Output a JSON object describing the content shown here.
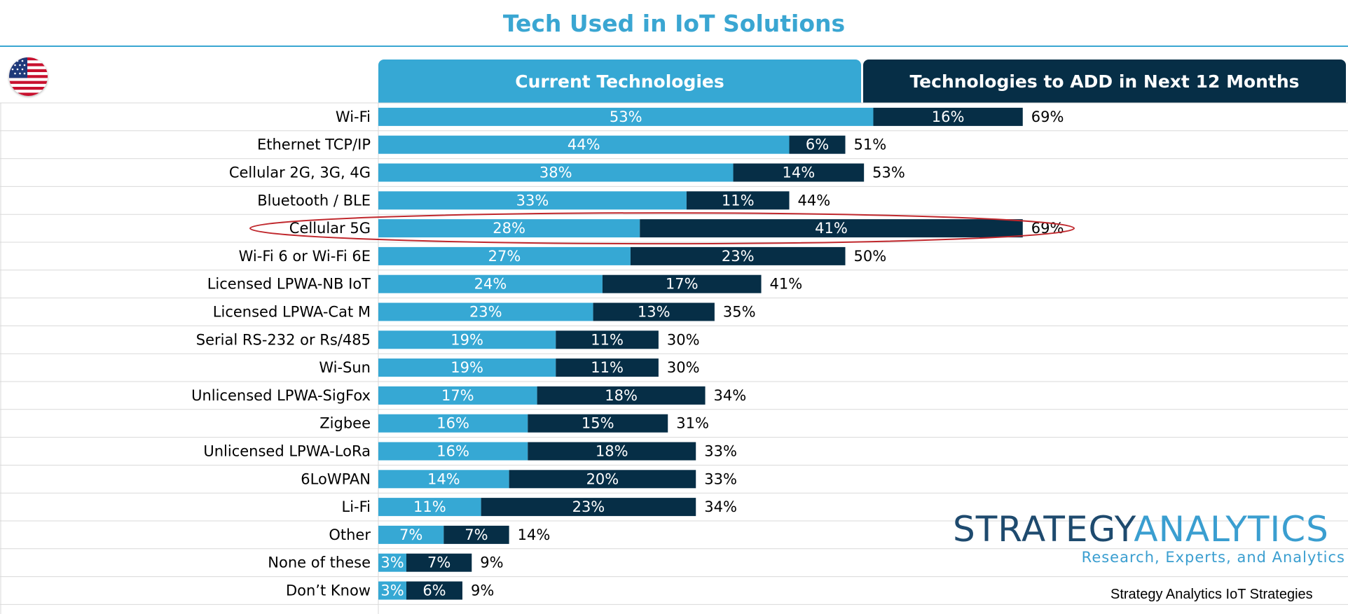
{
  "header": {
    "title": "Tech Used in IoT Solutions",
    "current_label": "Current Technologies",
    "add_label": "Technologies to ADD in Next 12 Months"
  },
  "chart_data": {
    "type": "bar",
    "orientation": "horizontal",
    "stacked": true,
    "title": "Tech Used in IoT Solutions",
    "categories": [
      "Wi-Fi",
      "Ethernet TCP/IP",
      "Cellular 2G, 3G, 4G",
      "Bluetooth / BLE",
      "Cellular 5G",
      "Wi-Fi 6 or Wi-Fi 6E",
      "Licensed LPWA-NB IoT",
      "Licensed LPWA-Cat M",
      "Serial RS-232 or Rs/485",
      "Wi-Sun",
      "Unlicensed LPWA-SigFox",
      "Zigbee",
      "Unlicensed LPWA-LoRa",
      "6LoWPAN",
      "Li-Fi",
      "Other",
      "None of these",
      "Don’t Know"
    ],
    "series": [
      {
        "name": "Current Technologies",
        "color": "#36a8d4",
        "values": [
          53,
          44,
          38,
          33,
          28,
          27,
          24,
          23,
          19,
          19,
          17,
          16,
          16,
          14,
          11,
          7,
          3,
          3
        ]
      },
      {
        "name": "Technologies to ADD in Next 12 Months",
        "color": "#062e46",
        "values": [
          16,
          6,
          14,
          11,
          41,
          23,
          17,
          13,
          11,
          11,
          18,
          15,
          18,
          20,
          23,
          7,
          7,
          6
        ]
      }
    ],
    "totals": [
      69,
      51,
      53,
      44,
      69,
      50,
      41,
      35,
      30,
      30,
      34,
      31,
      33,
      33,
      34,
      14,
      9,
      9
    ],
    "value_suffix": "%",
    "highlight_category": "Cellular 5G",
    "highlight_color": "#c0282d",
    "xlim": [
      0,
      100
    ],
    "grid": "horizontal row lines",
    "legend": "top"
  },
  "logo": {
    "word1": "STRATEGY",
    "word2": "ANALYTICS",
    "tagline": "Research, Experts, and Analytics"
  },
  "source": "Strategy Analytics IoT Strategies"
}
